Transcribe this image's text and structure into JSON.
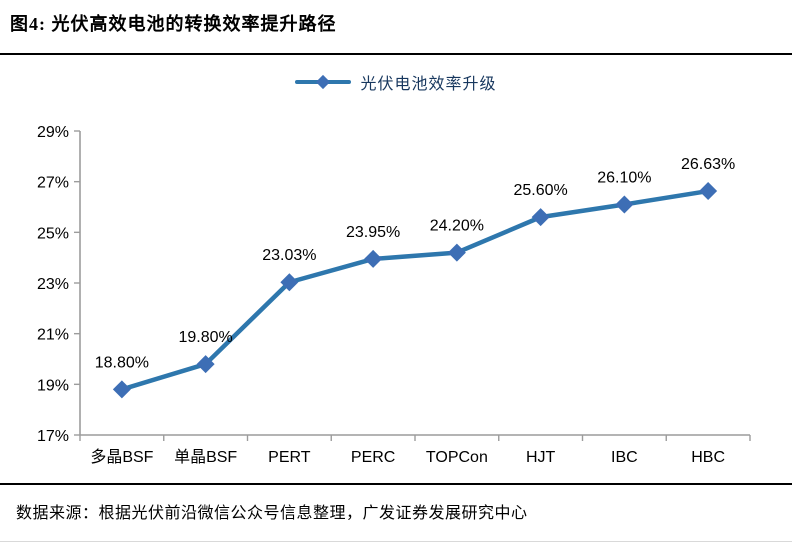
{
  "header": {
    "title": "图4:  光伏高效电池的转换效率提升路径"
  },
  "legend": {
    "label": "光伏电池效率升级"
  },
  "chart_data": {
    "type": "line",
    "title": "光伏电池效率升级",
    "categories": [
      "多晶BSF",
      "单晶BSF",
      "PERT",
      "PERC",
      "TOPCon",
      "HJT",
      "IBC",
      "HBC"
    ],
    "values": [
      18.8,
      19.8,
      23.03,
      23.95,
      24.2,
      25.6,
      26.1,
      26.63
    ],
    "point_labels": [
      "18.80%",
      "19.80%",
      "23.03%",
      "23.95%",
      "24.20%",
      "25.60%",
      "26.10%",
      "26.63%"
    ],
    "ylim": [
      17,
      29
    ],
    "yticks": [
      17,
      19,
      21,
      23,
      25,
      27,
      29
    ],
    "ytick_suffix": "%",
    "xlabel": "",
    "ylabel": "",
    "grid": false,
    "legend_position": "top-center",
    "marker_shape": "diamond",
    "colors": {
      "line": "#2E77AD",
      "marker": "#3D6EB5",
      "axis": "#9C9C9C",
      "tick_text": "#000000",
      "data_label_text": "#000000"
    }
  },
  "footer": {
    "source": "数据来源：根据光伏前沿微信公众号信息整理，广发证券发展研究中心"
  }
}
